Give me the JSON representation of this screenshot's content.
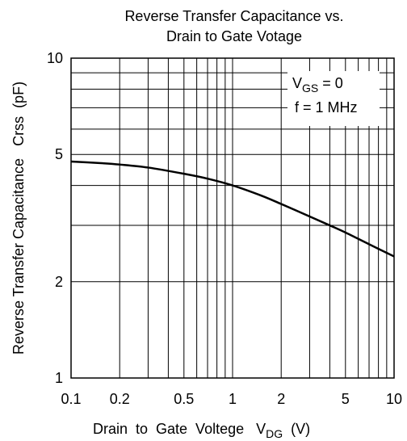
{
  "chart_data": {
    "type": "line",
    "title": [
      "Reverse Transfer Capacitance vs.",
      "Drain to Gate Votage"
    ],
    "xlabel": {
      "main": "Drain  to  Gate  Voltege   V",
      "sub": "DG",
      "unit": "  (V)"
    },
    "ylabel": "Reverse Transfer Capacitance   Crss  (pF)",
    "xscale": "log",
    "yscale": "log",
    "xlim": [
      0.1,
      10
    ],
    "ylim": [
      1,
      10
    ],
    "xticks": [
      0.1,
      0.2,
      0.5,
      1,
      2,
      5,
      10
    ],
    "xtick_labels": [
      "0.1",
      "0.2",
      "0.5",
      "1",
      "2",
      "5",
      "10"
    ],
    "yticks": [
      1,
      2,
      5,
      10
    ],
    "ytick_labels": [
      "1",
      "2",
      "5",
      "10"
    ],
    "grid": true,
    "annotations": [
      {
        "main": "V",
        "sub": "GS",
        "rest": " = 0"
      },
      {
        "text": "f = 1 MHz"
      }
    ],
    "series": [
      {
        "x": [
          0.1,
          0.15,
          0.2,
          0.3,
          0.5,
          0.7,
          1,
          1.5,
          2,
          3,
          4,
          5,
          7,
          10
        ],
        "y": [
          4.75,
          4.7,
          4.65,
          4.55,
          4.35,
          4.2,
          4.0,
          3.72,
          3.5,
          3.2,
          3.0,
          2.85,
          2.62,
          2.4
        ]
      }
    ]
  }
}
